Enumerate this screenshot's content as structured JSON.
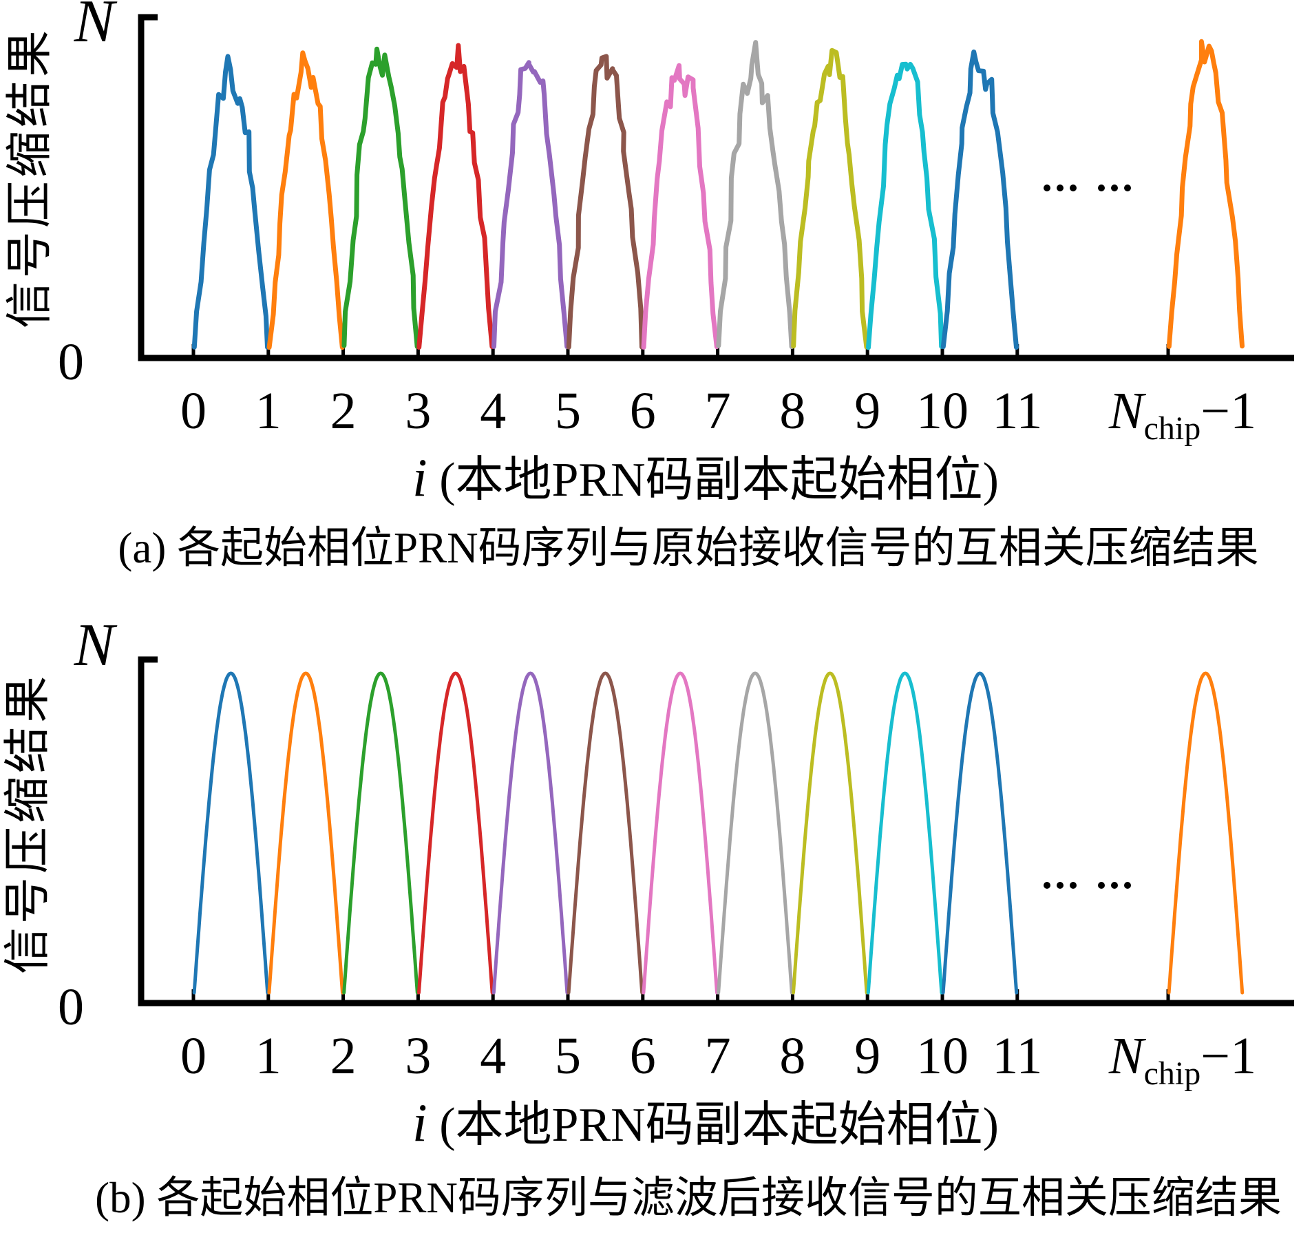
{
  "figure": {
    "background": "#ffffff",
    "axis_color": "#000000",
    "y_max_label": "N",
    "y_min_label": "0",
    "ylabel": "信号压缩结果",
    "xlabel_i": "i",
    "xlabel_rest": " (本地PRN码副本起始相位)",
    "nchip": {
      "n": "N",
      "sub": "chip",
      "rest": "−1"
    },
    "ellipsis": "... ..."
  },
  "charts": [
    {
      "panel": "a",
      "caption": "(a) 各起始相位PRN码序列与原始接收信号的互相关压缩结果"
    },
    {
      "panel": "b",
      "caption": "(b) 各起始相位PRN码序列与滤波后接收信号的互相关压缩结果"
    }
  ],
  "chart_data": [
    {
      "type": "line",
      "panel": "a",
      "title": "(a) 各起始相位PRN码序列与原始接收信号的互相关压缩结果",
      "xlabel": "i (本地PRN码副本起始相位)",
      "ylabel": "信号压缩结果",
      "style": "noisy",
      "grid": false,
      "legend": false,
      "ylim": [
        0,
        "N"
      ],
      "y_tick_labels": [
        "0",
        "N"
      ],
      "x_tick_labels": [
        "0",
        "1",
        "2",
        "3",
        "4",
        "5",
        "6",
        "7",
        "8",
        "9",
        "10",
        "11",
        "N_chip−1"
      ],
      "gap_ellipsis": "... ...",
      "pulses": [
        {
          "i": 0,
          "span": "[0,1]",
          "peak": "≈N",
          "color": "#1f77b4"
        },
        {
          "i": 1,
          "span": "[1,2]",
          "peak": "≈N",
          "color": "#ff7f0e"
        },
        {
          "i": 2,
          "span": "[2,3]",
          "peak": "≈N",
          "color": "#2ca02c"
        },
        {
          "i": 3,
          "span": "[3,4]",
          "peak": "≈N",
          "color": "#d62728"
        },
        {
          "i": 4,
          "span": "[4,5]",
          "peak": "≈N",
          "color": "#9467bd"
        },
        {
          "i": 5,
          "span": "[5,6]",
          "peak": "≈N",
          "color": "#8c564b"
        },
        {
          "i": 6,
          "span": "[6,7]",
          "peak": "≈N",
          "color": "#e377c2"
        },
        {
          "i": 7,
          "span": "[7,8]",
          "peak": "≈N",
          "color": "#a6a6a6"
        },
        {
          "i": 8,
          "span": "[8,9]",
          "peak": "≈N",
          "color": "#bcbd22"
        },
        {
          "i": 9,
          "span": "[9,10]",
          "peak": "≈N",
          "color": "#17becf"
        },
        {
          "i": 10,
          "span": "[10,11]",
          "peak": "≈N",
          "color": "#1f77b4"
        },
        {
          "i": "N_chip−1",
          "span": "[N_chip−1,N_chip]",
          "peak": "≈N",
          "color": "#ff7f0e"
        }
      ]
    },
    {
      "type": "line",
      "panel": "b",
      "title": "(b) 各起始相位PRN码序列与滤波后接收信号的互相关压缩结果",
      "xlabel": "i (本地PRN码副本起始相位)",
      "ylabel": "信号压缩结果",
      "style": "smooth",
      "grid": false,
      "legend": false,
      "ylim": [
        0,
        "N"
      ],
      "y_tick_labels": [
        "0",
        "N"
      ],
      "x_tick_labels": [
        "0",
        "1",
        "2",
        "3",
        "4",
        "5",
        "6",
        "7",
        "8",
        "9",
        "10",
        "11",
        "N_chip−1"
      ],
      "gap_ellipsis": "... ...",
      "pulses": [
        {
          "i": 0,
          "span": "[0,1]",
          "peak": "≈N",
          "color": "#1f77b4"
        },
        {
          "i": 1,
          "span": "[1,2]",
          "peak": "≈N",
          "color": "#ff7f0e"
        },
        {
          "i": 2,
          "span": "[2,3]",
          "peak": "≈N",
          "color": "#2ca02c"
        },
        {
          "i": 3,
          "span": "[3,4]",
          "peak": "≈N",
          "color": "#d62728"
        },
        {
          "i": 4,
          "span": "[4,5]",
          "peak": "≈N",
          "color": "#9467bd"
        },
        {
          "i": 5,
          "span": "[5,6]",
          "peak": "≈N",
          "color": "#8c564b"
        },
        {
          "i": 6,
          "span": "[6,7]",
          "peak": "≈N",
          "color": "#e377c2"
        },
        {
          "i": 7,
          "span": "[7,8]",
          "peak": "≈N",
          "color": "#a6a6a6"
        },
        {
          "i": 8,
          "span": "[8,9]",
          "peak": "≈N",
          "color": "#bcbd22"
        },
        {
          "i": 9,
          "span": "[9,10]",
          "peak": "≈N",
          "color": "#17becf"
        },
        {
          "i": 10,
          "span": "[10,11]",
          "peak": "≈N",
          "color": "#1f77b4"
        },
        {
          "i": "N_chip−1",
          "span": "[N_chip−1,N_chip]",
          "peak": "≈N",
          "color": "#ff7f0e"
        }
      ]
    }
  ]
}
